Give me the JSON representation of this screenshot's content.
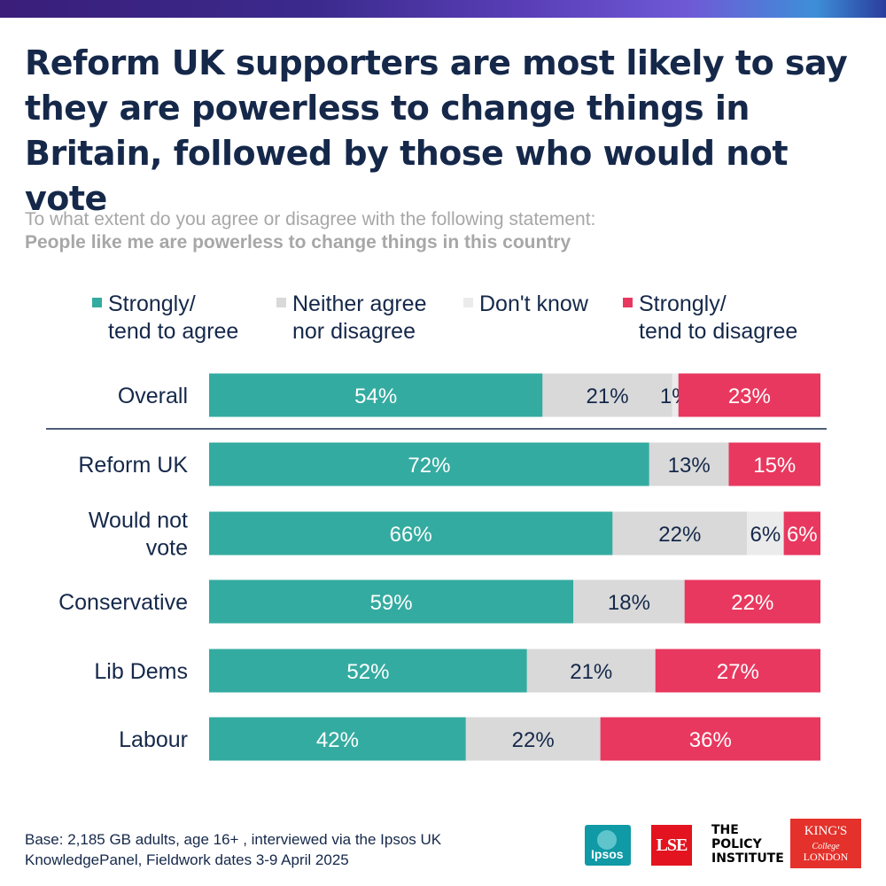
{
  "header": {
    "title": "Reform UK supporters are most likely to say they are powerless to change things in Britain, followed by those who would not vote",
    "question": "To what extent do you agree or disagree with the following statement:",
    "statement": "People like me are powerless to change things in this country"
  },
  "legend": [
    {
      "label_line1": "Strongly/",
      "label_line2": "tend to agree",
      "color": "#34aba0"
    },
    {
      "label_line1": "Neither agree",
      "label_line2": "nor disagree",
      "color": "#d9d9d9"
    },
    {
      "label_line1": "Don't know",
      "label_line2": "",
      "color": "#ebebeb"
    },
    {
      "label_line1": "Strongly/",
      "label_line2": "tend to disagree",
      "color": "#e8385f"
    }
  ],
  "chart_data": {
    "type": "bar",
    "orientation": "horizontal",
    "stacked": true,
    "title": "Reform UK supporters are most likely to say they are powerless to change things in Britain, followed by those who would not vote",
    "categories": [
      "Overall",
      "Reform UK",
      "Would not vote",
      "Conservative",
      "Lib Dems",
      "Labour"
    ],
    "category_lines": [
      [
        "Overall"
      ],
      [
        "Reform UK"
      ],
      [
        "Would not",
        "vote"
      ],
      [
        "Conservative"
      ],
      [
        "Lib Dems"
      ],
      [
        "Labour"
      ]
    ],
    "series": [
      {
        "name": "Strongly/ tend to agree",
        "color": "#34aba0",
        "text_color": "#ffffff",
        "values": [
          54,
          72,
          66,
          59,
          52,
          42
        ]
      },
      {
        "name": "Neither agree nor disagree",
        "color": "#d9d9d9",
        "text_color": "#15284a",
        "values": [
          21,
          13,
          22,
          18,
          21,
          22
        ]
      },
      {
        "name": "Don't know",
        "color": "#ebebeb",
        "text_color": "#15284a",
        "values": [
          1,
          0,
          6,
          0,
          0,
          0
        ]
      },
      {
        "name": "Strongly/ tend to disagree",
        "color": "#e8385f",
        "text_color": "#ffffff",
        "values": [
          23,
          15,
          6,
          22,
          27,
          36
        ]
      }
    ],
    "data_labels": [
      [
        "54%",
        "21%",
        "1%",
        "23%"
      ],
      [
        "72%",
        "13%",
        "",
        "15%"
      ],
      [
        "66%",
        "22%",
        "6%",
        "6%"
      ],
      [
        "59%",
        "18%",
        "",
        "22%"
      ],
      [
        "52%",
        "21%",
        "",
        "27%"
      ],
      [
        "42%",
        "22%",
        "",
        "36%"
      ]
    ],
    "xlim": [
      0,
      100
    ],
    "unit": "%",
    "divider_after": "Overall"
  },
  "footer": {
    "base_line1": "Base: 2,185 GB adults, age 16+ , interviewed via the Ipsos UK",
    "base_line2": "KnowledgePanel, Fieldwork dates 3-9 April 2025",
    "logos": {
      "ipsos": "Ipsos",
      "lse": "LSE",
      "policy_line1": "THE",
      "policy_line2": "POLICY",
      "policy_line3": "INSTITUTE",
      "kings_line1": "KING'S",
      "kings_line2": "College",
      "kings_line3": "LONDON"
    }
  }
}
